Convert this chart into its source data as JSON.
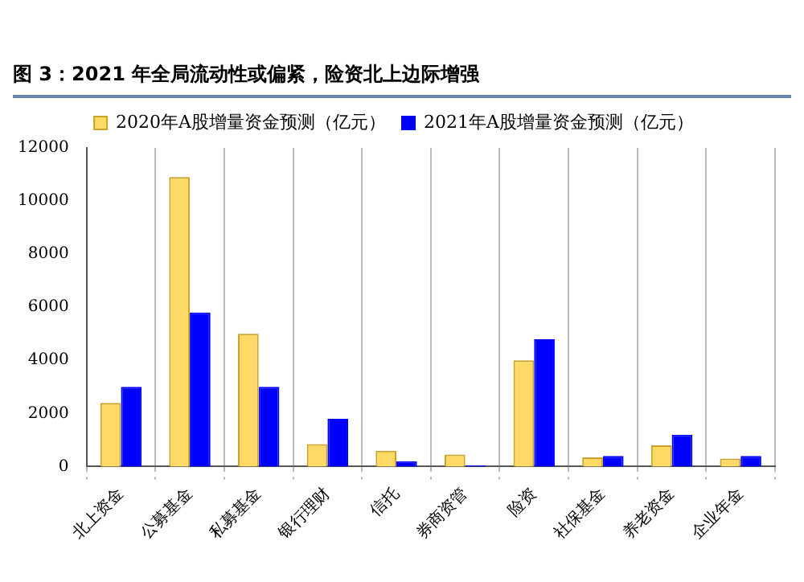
{
  "chart_data": {
    "type": "bar",
    "title": "图 3：2021 年全局流动性或偏紧，险资北上边际增强",
    "categories": [
      "北上资金",
      "公募基金",
      "私募基金",
      "银行理财",
      "信托",
      "券商资管",
      "险资",
      "社保基金",
      "养老资金",
      "企业年金"
    ],
    "series": [
      {
        "name": "2020年A股增量资金预测（亿元）",
        "color": "#ffd966",
        "values": [
          2400,
          10900,
          5000,
          850,
          600,
          450,
          4000,
          350,
          800,
          300
        ]
      },
      {
        "name": "2021年A股增量资金预测（亿元）",
        "color": "#0000ff",
        "values": [
          3000,
          5800,
          3000,
          1800,
          200,
          50,
          4800,
          400,
          1200,
          400
        ]
      }
    ],
    "ylim": [
      0,
      12000
    ],
    "yticks": [
      0,
      2000,
      4000,
      6000,
      8000,
      10000,
      12000
    ],
    "grid": "x",
    "legend": "top"
  }
}
